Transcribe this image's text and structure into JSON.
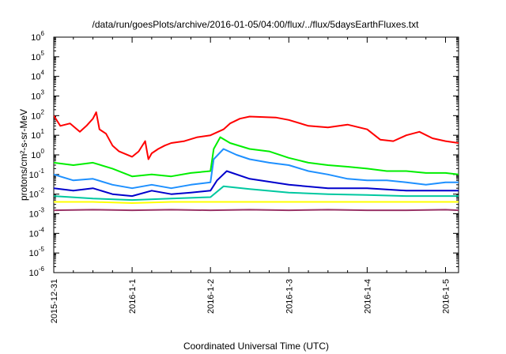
{
  "chart_data": {
    "type": "line",
    "title": "/data/run/goesPlots/archive/2016-01-05/04:00/flux/../flux/5daysEarthFluxes.txt",
    "xlabel": "Coordinated Universal Time (UTC)",
    "ylabel": "protons/cm²-s-sr-MeV",
    "y_scale": "log",
    "ylim": [
      1e-06,
      1000000.0
    ],
    "xlim": [
      "2015-12-31 00:00",
      "2016-01-05 04:00"
    ],
    "grid": false,
    "x_ticks": [
      {
        "x": "2015-12-31",
        "label": "2015-12-31"
      },
      {
        "x": "2016-01-01",
        "label": "2016-1-1"
      },
      {
        "x": "2016-01-02",
        "label": "2016-1-2"
      },
      {
        "x": "2016-01-03",
        "label": "2016-1-3"
      },
      {
        "x": "2016-01-04",
        "label": "2016-1-4"
      },
      {
        "x": "2016-01-05",
        "label": "2016-1-5"
      }
    ],
    "y_ticks": [
      {
        "value": 1e-06,
        "base": "10",
        "exp": "-6"
      },
      {
        "value": 1e-05,
        "base": "10",
        "exp": "-5"
      },
      {
        "value": 0.0001,
        "base": "10",
        "exp": "-4"
      },
      {
        "value": 0.001,
        "base": "10",
        "exp": "-3"
      },
      {
        "value": 0.01,
        "base": "10",
        "exp": "-2"
      },
      {
        "value": 0.1,
        "base": "10",
        "exp": "-1"
      },
      {
        "value": 1,
        "base": "10",
        "exp": "0"
      },
      {
        "value": 10,
        "base": "10",
        "exp": "1"
      },
      {
        "value": 100,
        "base": "10",
        "exp": "2"
      },
      {
        "value": 1000,
        "base": "10",
        "exp": "3"
      },
      {
        "value": 10000,
        "base": "10",
        "exp": "4"
      },
      {
        "value": 100000,
        "base": "10",
        "exp": "5"
      },
      {
        "value": 1000000,
        "base": "10",
        "exp": "6"
      }
    ],
    "series": [
      {
        "color": "#ff0000",
        "x": [
          "2015-12-31 00:00",
          "2015-12-31 02:00",
          "2015-12-31 05:00",
          "2015-12-31 08:00",
          "2015-12-31 10:00",
          "2015-12-31 12:00",
          "2015-12-31 13:00",
          "2015-12-31 14:00",
          "2015-12-31 16:00",
          "2015-12-31 18:00",
          "2015-12-31 20:00",
          "2016-01-01 00:00",
          "2016-01-01 02:00",
          "2016-01-01 04:00",
          "2016-01-01 05:00",
          "2016-01-01 06:00",
          "2016-01-01 08:00",
          "2016-01-01 10:00",
          "2016-01-01 12:00",
          "2016-01-01 16:00",
          "2016-01-01 20:00",
          "2016-01-02 00:00",
          "2016-01-02 04:00",
          "2016-01-02 06:00",
          "2016-01-02 09:00",
          "2016-01-02 12:00",
          "2016-01-02 16:00",
          "2016-01-02 20:00",
          "2016-01-03 00:00",
          "2016-01-03 06:00",
          "2016-01-03 12:00",
          "2016-01-03 18:00",
          "2016-01-04 00:00",
          "2016-01-04 04:00",
          "2016-01-04 08:00",
          "2016-01-04 12:00",
          "2016-01-04 16:00",
          "2016-01-04 20:00",
          "2016-01-05 00:00",
          "2016-01-05 04:00"
        ],
        "values": [
          100,
          30,
          40,
          15,
          30,
          70,
          150,
          20,
          12,
          3,
          1.5,
          0.8,
          1.5,
          5,
          0.6,
          1.2,
          2,
          3,
          4,
          5,
          8,
          10,
          20,
          40,
          70,
          90,
          85,
          80,
          60,
          30,
          25,
          35,
          20,
          6,
          5,
          10,
          15,
          7,
          5,
          4
        ]
      },
      {
        "color": "#00ee00",
        "x": [
          "2015-12-31 00:00",
          "2015-12-31 06:00",
          "2015-12-31 12:00",
          "2015-12-31 18:00",
          "2016-01-01 00:00",
          "2016-01-01 06:00",
          "2016-01-01 12:00",
          "2016-01-01 18:00",
          "2016-01-02 00:00",
          "2016-01-02 01:00",
          "2016-01-02 03:00",
          "2016-01-02 06:00",
          "2016-01-02 12:00",
          "2016-01-02 18:00",
          "2016-01-03 00:00",
          "2016-01-03 06:00",
          "2016-01-03 12:00",
          "2016-01-03 18:00",
          "2016-01-04 00:00",
          "2016-01-04 06:00",
          "2016-01-04 12:00",
          "2016-01-04 18:00",
          "2016-01-05 00:00",
          "2016-01-05 04:00"
        ],
        "values": [
          0.4,
          0.3,
          0.4,
          0.2,
          0.08,
          0.1,
          0.08,
          0.12,
          0.15,
          2,
          8,
          4,
          2,
          1.5,
          0.7,
          0.4,
          0.3,
          0.25,
          0.2,
          0.15,
          0.15,
          0.12,
          0.12,
          0.1
        ]
      },
      {
        "color": "#1e90ff",
        "x": [
          "2015-12-31 00:00",
          "2015-12-31 06:00",
          "2015-12-31 12:00",
          "2015-12-31 18:00",
          "2016-01-01 00:00",
          "2016-01-01 06:00",
          "2016-01-01 12:00",
          "2016-01-01 18:00",
          "2016-01-02 00:00",
          "2016-01-02 01:00",
          "2016-01-02 04:00",
          "2016-01-02 08:00",
          "2016-01-02 12:00",
          "2016-01-02 18:00",
          "2016-01-03 00:00",
          "2016-01-03 06:00",
          "2016-01-03 12:00",
          "2016-01-03 18:00",
          "2016-01-04 00:00",
          "2016-01-04 06:00",
          "2016-01-04 12:00",
          "2016-01-04 18:00",
          "2016-01-05 00:00",
          "2016-01-05 04:00"
        ],
        "values": [
          0.1,
          0.05,
          0.06,
          0.03,
          0.02,
          0.03,
          0.02,
          0.03,
          0.04,
          0.6,
          2,
          1,
          0.6,
          0.4,
          0.3,
          0.15,
          0.1,
          0.06,
          0.05,
          0.05,
          0.04,
          0.03,
          0.04,
          0.04
        ]
      },
      {
        "color": "#0000cc",
        "x": [
          "2015-12-31 00:00",
          "2015-12-31 06:00",
          "2015-12-31 12:00",
          "2015-12-31 18:00",
          "2016-01-01 00:00",
          "2016-01-01 06:00",
          "2016-01-01 12:00",
          "2016-01-01 18:00",
          "2016-01-02 00:00",
          "2016-01-02 02:00",
          "2016-01-02 05:00",
          "2016-01-02 12:00",
          "2016-01-03 00:00",
          "2016-01-03 12:00",
          "2016-01-04 00:00",
          "2016-01-04 12:00",
          "2016-01-05 00:00",
          "2016-01-05 04:00"
        ],
        "values": [
          0.02,
          0.015,
          0.02,
          0.01,
          0.008,
          0.015,
          0.01,
          0.012,
          0.015,
          0.05,
          0.15,
          0.06,
          0.03,
          0.02,
          0.02,
          0.015,
          0.015,
          0.015
        ]
      },
      {
        "color": "#00c8a0",
        "x": [
          "2015-12-31 00:00",
          "2015-12-31 12:00",
          "2016-01-01 00:00",
          "2016-01-01 12:00",
          "2016-01-02 00:00",
          "2016-01-02 04:00",
          "2016-01-02 12:00",
          "2016-01-03 00:00",
          "2016-01-03 12:00",
          "2016-01-04 00:00",
          "2016-01-04 12:00",
          "2016-01-05 00:00",
          "2016-01-05 04:00"
        ],
        "values": [
          0.008,
          0.006,
          0.005,
          0.006,
          0.007,
          0.025,
          0.018,
          0.012,
          0.01,
          0.009,
          0.008,
          0.008,
          0.008
        ]
      },
      {
        "color": "#ffff00",
        "x": [
          "2015-12-31 00:00",
          "2015-12-31 12:00",
          "2016-01-01 00:00",
          "2016-01-01 12:00",
          "2016-01-02 00:00",
          "2016-01-02 12:00",
          "2016-01-03 00:00",
          "2016-01-03 12:00",
          "2016-01-04 00:00",
          "2016-01-04 12:00",
          "2016-01-05 00:00",
          "2016-01-05 04:00"
        ],
        "values": [
          0.004,
          0.004,
          0.0035,
          0.004,
          0.004,
          0.004,
          0.004,
          0.004,
          0.004,
          0.004,
          0.004,
          0.004
        ]
      },
      {
        "color": "#993366",
        "x": [
          "2015-12-31 00:00",
          "2015-12-31 12:00",
          "2016-01-01 00:00",
          "2016-01-01 12:00",
          "2016-01-02 00:00",
          "2016-01-02 12:00",
          "2016-01-03 00:00",
          "2016-01-03 12:00",
          "2016-01-04 00:00",
          "2016-01-04 12:00",
          "2016-01-05 00:00",
          "2016-01-05 04:00"
        ],
        "values": [
          0.0015,
          0.0016,
          0.0015,
          0.0016,
          0.0015,
          0.0016,
          0.0015,
          0.0016,
          0.0015,
          0.0015,
          0.0016,
          0.0015
        ]
      }
    ]
  }
}
